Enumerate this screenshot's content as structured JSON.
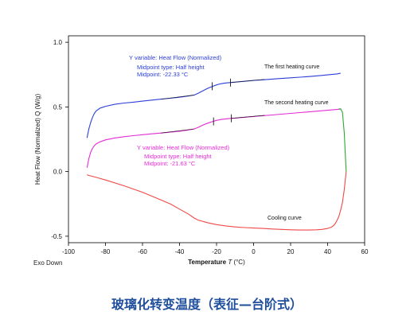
{
  "caption": "玻璃化转变温度（表征—台阶式）",
  "exo_label": "Exo Down",
  "chart_data": {
    "type": "line",
    "xlabel": "Temperature",
    "xlabel_symbol": "T",
    "xlabel_unit": "(°C)",
    "ylabel": "Heat Flow (Normalized)  Q  (W/g)",
    "xlim": [
      -100,
      60
    ],
    "ylim": [
      -0.55,
      1.05
    ],
    "xticks": [
      -100,
      -80,
      -60,
      -40,
      -20,
      0,
      20,
      40,
      60
    ],
    "yticks": [
      -0.5,
      0.0,
      0.5,
      1.0
    ],
    "ytick_labels": [
      "-0.5",
      "0.0",
      "0.5",
      "1.0"
    ],
    "series": [
      {
        "name": "The first heating curve",
        "color": "#2b3fd6",
        "x": [
          -90,
          -89,
          -88,
          -87,
          -86,
          -85,
          -83,
          -80,
          -75,
          -70,
          -65,
          -60,
          -55,
          -50,
          -45,
          -40,
          -35,
          -32,
          -30,
          -28,
          -26,
          -24,
          -22,
          -20,
          -18,
          -16,
          -14,
          -12,
          -10,
          -5,
          0,
          5,
          10,
          15,
          20,
          25,
          30,
          35,
          40,
          45,
          47
        ],
        "y": [
          0.26,
          0.33,
          0.38,
          0.42,
          0.45,
          0.47,
          0.49,
          0.505,
          0.52,
          0.53,
          0.537,
          0.545,
          0.553,
          0.56,
          0.567,
          0.575,
          0.585,
          0.592,
          0.605,
          0.62,
          0.635,
          0.648,
          0.66,
          0.67,
          0.678,
          0.683,
          0.686,
          0.689,
          0.692,
          0.698,
          0.705,
          0.71,
          0.715,
          0.72,
          0.725,
          0.73,
          0.735,
          0.741,
          0.748,
          0.755,
          0.76
        ]
      },
      {
        "name": "The second heating curve",
        "color": "#e52bd5",
        "x": [
          -90,
          -89,
          -88,
          -87,
          -86,
          -85,
          -83,
          -80,
          -75,
          -70,
          -65,
          -60,
          -55,
          -50,
          -45,
          -40,
          -35,
          -32,
          -30,
          -28,
          -26,
          -24,
          -22,
          -20,
          -18,
          -16,
          -14,
          -12,
          -10,
          -5,
          0,
          5,
          10,
          15,
          20,
          25,
          30,
          35,
          40,
          45,
          47
        ],
        "y": [
          0.03,
          0.1,
          0.15,
          0.18,
          0.2,
          0.215,
          0.23,
          0.245,
          0.26,
          0.27,
          0.278,
          0.285,
          0.292,
          0.298,
          0.305,
          0.312,
          0.322,
          0.33,
          0.342,
          0.355,
          0.368,
          0.378,
          0.388,
          0.396,
          0.402,
          0.406,
          0.409,
          0.412,
          0.414,
          0.42,
          0.426,
          0.432,
          0.438,
          0.444,
          0.45,
          0.456,
          0.462,
          0.468,
          0.474,
          0.48,
          0.483
        ]
      },
      {
        "name": "Cooling curve",
        "color": "#f04848",
        "x": [
          50,
          49.5,
          49,
          48,
          47,
          46,
          45,
          44,
          43,
          42,
          40,
          37,
          34,
          30,
          25,
          20,
          15,
          10,
          5,
          0,
          -5,
          -10,
          -15,
          -20,
          -25,
          -30,
          -32,
          -35,
          -40,
          -45,
          -50,
          -60,
          -70,
          -80,
          -85,
          -89,
          -90
        ],
        "y": [
          0.0,
          -0.07,
          -0.14,
          -0.24,
          -0.3,
          -0.35,
          -0.38,
          -0.405,
          -0.42,
          -0.43,
          -0.44,
          -0.447,
          -0.45,
          -0.452,
          -0.452,
          -0.45,
          -0.447,
          -0.444,
          -0.44,
          -0.437,
          -0.433,
          -0.428,
          -0.42,
          -0.41,
          -0.395,
          -0.375,
          -0.36,
          -0.33,
          -0.29,
          -0.25,
          -0.22,
          -0.16,
          -0.11,
          -0.065,
          -0.045,
          -0.03,
          -0.025
        ]
      },
      {
        "name": "",
        "color": "#2fa82f",
        "x": [
          46,
          47,
          48,
          49,
          50
        ],
        "y": [
          0.484,
          0.486,
          0.46,
          0.3,
          0.0
        ]
      }
    ],
    "tangents": [
      {
        "color": "#111111",
        "x": [
          -50,
          -32
        ],
        "y": [
          0.56,
          0.592
        ]
      },
      {
        "color": "#111111",
        "x": [
          -12,
          6
        ],
        "y": [
          0.689,
          0.713
        ]
      },
      {
        "color": "#111111",
        "x": [
          -50,
          -32
        ],
        "y": [
          0.298,
          0.33
        ]
      },
      {
        "color": "#111111",
        "x": [
          -12,
          6
        ],
        "y": [
          0.412,
          0.435
        ]
      }
    ],
    "markers": [
      {
        "color": "#111111",
        "x": -22.33,
        "y": 0.66
      },
      {
        "color": "#111111",
        "x": -12.5,
        "y": 0.688
      },
      {
        "color": "#111111",
        "x": -21.63,
        "y": 0.388
      },
      {
        "color": "#111111",
        "x": -12.0,
        "y": 0.412
      }
    ],
    "annotations": [
      {
        "color": "#2b3fd6",
        "lines": [
          "Y variable: Heat Flow (Normalized)",
          "Midpoint type: Half height",
          "Midpoint: -22.33 °C"
        ]
      },
      {
        "color": "#e52bd5",
        "lines": [
          "Y variable: Heat Flow (Normalized)",
          "Midpoint type: Half height",
          "Midpoint: -21.63 °C"
        ]
      }
    ]
  }
}
